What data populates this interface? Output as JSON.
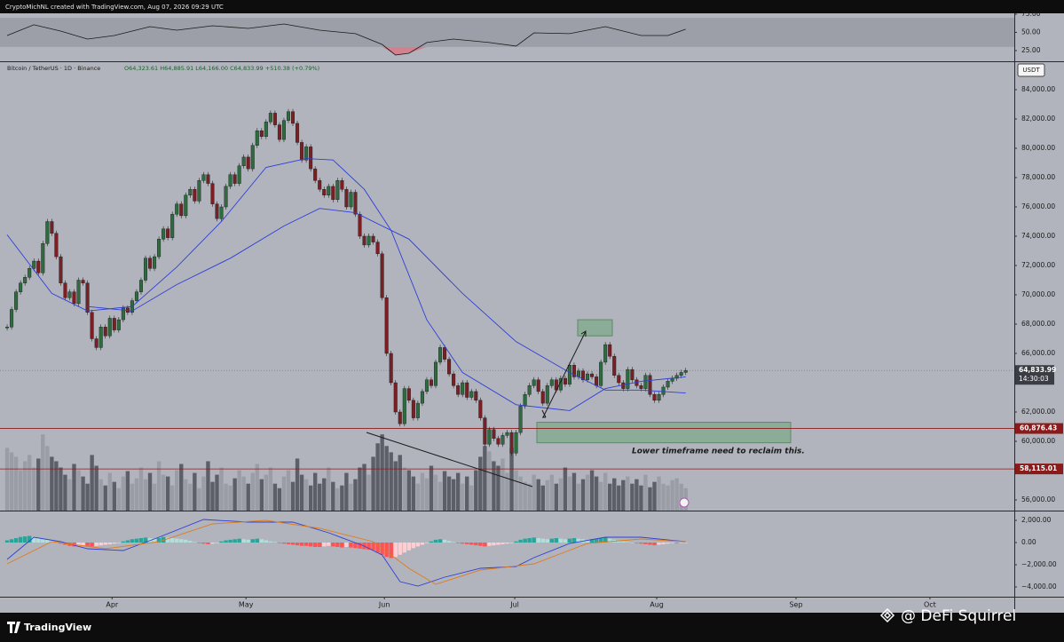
{
  "header": {
    "text": "CryptoMichNL created with TradingView.com, Aug 07, 2026 09:29 UTC"
  },
  "legend": {
    "symbol": "Bitcoin / TetherUS · 1D · Binance",
    "ohlc": "O64,323.61 H64,885.91 L64,166.00 C64,833.99 +510.38 (+0.79%)"
  },
  "currency": "USDT",
  "annotation": "Lower timeframe need to reclaim this.",
  "footer": {
    "brand": "TradingView",
    "watermark": "@ DeFi Squirrel"
  },
  "chart_data": [
    {
      "type": "candlestick",
      "up_color": "#2e6b3e",
      "down_color": "#7a1f24",
      "xlim": [
        -1.6,
        225.6
      ],
      "ylim": [
        55273,
        85879
      ],
      "xticks": [
        {
          "value": 23.5,
          "label": "Apr"
        },
        {
          "value": 53.5,
          "label": "May"
        },
        {
          "value": 84.5,
          "label": "Jun"
        },
        {
          "value": 113.7,
          "label": "Jul"
        },
        {
          "value": 145.5,
          "label": "Aug"
        },
        {
          "value": 176.7,
          "label": "Sep"
        },
        {
          "value": 206.7,
          "label": "Oct"
        }
      ],
      "yticks": [
        {
          "value": 84000,
          "label": "84,000.00"
        },
        {
          "value": 82000,
          "label": "82,000.00"
        },
        {
          "value": 80000,
          "label": "80,000.00"
        },
        {
          "value": 78000,
          "label": "78,000.00"
        },
        {
          "value": 76000,
          "label": "76,000.00"
        },
        {
          "value": 74000,
          "label": "74,000.00"
        },
        {
          "value": 72000,
          "label": "72,000.00"
        },
        {
          "value": 70000,
          "label": "70,000.00"
        },
        {
          "value": 68000,
          "label": "68,000.00"
        },
        {
          "value": 66000,
          "label": "66,000.00"
        },
        {
          "value": 62000,
          "label": "62,000.00"
        },
        {
          "value": 60000,
          "label": "60,000.00"
        },
        {
          "value": 56000,
          "label": "56,000.00"
        }
      ],
      "close": [
        67800,
        69000,
        70200,
        70800,
        71200,
        71800,
        72300,
        71500,
        73500,
        75000,
        74200,
        72600,
        70800,
        69800,
        70200,
        69400,
        71000,
        70800,
        68800,
        67000,
        66400,
        67800,
        67200,
        68400,
        67600,
        68300,
        69100,
        68800,
        69600,
        70200,
        71000,
        72500,
        71800,
        72600,
        73800,
        74500,
        73900,
        75500,
        76200,
        75400,
        76800,
        77200,
        76400,
        77800,
        78200,
        77600,
        76200,
        75200,
        76000,
        77400,
        78200,
        77600,
        78800,
        79400,
        78600,
        80200,
        81200,
        80800,
        81800,
        82400,
        81600,
        80600,
        81900,
        82500,
        81700,
        80400,
        79200,
        80100,
        78600,
        77800,
        77200,
        76800,
        77400,
        76500,
        77800,
        77200,
        76000,
        77000,
        75500,
        74000,
        73400,
        74000,
        73600,
        72800,
        69800,
        66000,
        64000,
        62000,
        61200,
        63600,
        62800,
        61600,
        62600,
        63400,
        64200,
        63800,
        65400,
        66400,
        65600,
        64600,
        63800,
        63200,
        64000,
        63000,
        63400,
        62800,
        61600,
        59800,
        60800,
        60200,
        59800,
        60400,
        60600,
        59200,
        60600,
        62400,
        63200,
        63800,
        64200,
        63400,
        62600,
        63800,
        64200,
        63500,
        64300,
        63900,
        65200,
        64400,
        64800,
        64200,
        64600,
        64400,
        63800,
        65400,
        66600,
        65800,
        64500,
        64000,
        63600,
        64900,
        64200,
        63800,
        63600,
        64500,
        63200,
        62800,
        63200,
        63700,
        64100,
        64300,
        64500,
        64700,
        64833.99
      ],
      "volume": {
        "ylim": [
          0,
          500
        ],
        "up_color": "#9a9da6",
        "down_color": "#5c5f68",
        "values": [
          70,
          65,
          60,
          45,
          55,
          62,
          48,
          58,
          85,
          72,
          60,
          55,
          48,
          40,
          35,
          52,
          45,
          38,
          30,
          62,
          50,
          35,
          28,
          42,
          32,
          25,
          38,
          44,
          30,
          36,
          48,
          35,
          42,
          30,
          55,
          40,
          38,
          28,
          45,
          52,
          35,
          30,
          42,
          25,
          38,
          55,
          32,
          40,
          48,
          30,
          28,
          36,
          45,
          38,
          30,
          42,
          52,
          35,
          40,
          48,
          30,
          25,
          38,
          45,
          32,
          58,
          40,
          35,
          28,
          42,
          30,
          36,
          48,
          32,
          25,
          28,
          42,
          30,
          35,
          48,
          52,
          40,
          60,
          75,
          85,
          72,
          65,
          55,
          62,
          48,
          45,
          38,
          30,
          42,
          36,
          50,
          40,
          32,
          44,
          38,
          35,
          42,
          30,
          38,
          28,
          45,
          60,
          72,
          66,
          55,
          50,
          58,
          42,
          70,
          45,
          38,
          32,
          30,
          40,
          35,
          28,
          34,
          40,
          30,
          36,
          48,
          38,
          42,
          30,
          35,
          40,
          45,
          38,
          32,
          42,
          30,
          36,
          28,
          34,
          38,
          30,
          35,
          28,
          40,
          26,
          32,
          38,
          30,
          28,
          34,
          36,
          30,
          25
        ]
      },
      "moving_averages": [
        {
          "color": "#2f3fd6",
          "x": [
            0,
            10,
            18,
            28,
            38,
            48,
            58,
            67,
            73,
            80,
            86,
            94,
            102,
            114,
            126,
            134,
            142,
            152
          ],
          "values": [
            74100,
            70100,
            68900,
            69200,
            71900,
            75000,
            78700,
            79300,
            79200,
            77200,
            74400,
            68300,
            64700,
            62500,
            62100,
            63600,
            64100,
            64400
          ]
        },
        {
          "color": "#2f3fd6",
          "x": [
            18,
            28,
            38,
            50,
            62,
            70,
            78,
            90,
            102,
            114,
            126,
            134,
            142,
            152
          ],
          "values": [
            69200,
            68900,
            70700,
            72500,
            74700,
            75900,
            75600,
            73800,
            70100,
            66800,
            64700,
            63500,
            63500,
            63300
          ]
        }
      ],
      "zones": [
        {
          "ylim": [
            67200,
            68300
          ],
          "color": "#7fa989"
        },
        {
          "ylim": [
            59900,
            61300
          ],
          "color": "#7fa989"
        }
      ],
      "levels": [
        {
          "value": 60876.43,
          "label": "60,876.43",
          "color": "#8b1a1a"
        },
        {
          "value": 58115.01,
          "label": "58,115.01",
          "color": "#8b1a1a"
        }
      ],
      "last_price": {
        "value": 64833.99,
        "label": "64,833.99",
        "countdown": "14:30:03"
      }
    },
    {
      "type": "line",
      "ylim": [
        11.5,
        76.2
      ],
      "yticks": [
        {
          "value": 75,
          "label": "75.00"
        },
        {
          "value": 50,
          "label": "50.00"
        },
        {
          "value": 25,
          "label": "25.00"
        }
      ],
      "band": [
        30,
        70
      ],
      "color": "#1a1a1a",
      "x": [
        0,
        6,
        12,
        18,
        24,
        32,
        38,
        46,
        54,
        62,
        70,
        78,
        84,
        87,
        90,
        94,
        100,
        108,
        114,
        118,
        126,
        134,
        142,
        148,
        152
      ],
      "values": [
        45.7,
        60.4,
        51.8,
        40.8,
        45.7,
        57.9,
        53,
        59.1,
        55.5,
        61.6,
        53,
        48.2,
        33.5,
        18.9,
        21.3,
        36,
        40.8,
        36,
        31.1,
        49.4,
        48.2,
        57.9,
        45.7,
        45.7,
        54.3
      ]
    },
    {
      "type": "macd",
      "ylim": [
        -4880,
        2880
      ],
      "yticks": [
        {
          "value": 2000,
          "label": "2,000.00"
        },
        {
          "value": 0,
          "label": "0.00"
        },
        {
          "value": -2000,
          "label": "−2,000.00"
        },
        {
          "value": -4000,
          "label": "−4,000.00"
        }
      ],
      "histogram": [
        200,
        300,
        400,
        500,
        550,
        600,
        500,
        400,
        300,
        250,
        150,
        50,
        -100,
        -200,
        -300,
        -350,
        -300,
        -250,
        -300,
        -350,
        -300,
        -250,
        -200,
        -150,
        -100,
        -50,
        100,
        200,
        300,
        350,
        400,
        450,
        400,
        350,
        400,
        500,
        450,
        400,
        350,
        300,
        250,
        150,
        50,
        -50,
        -100,
        -150,
        -100,
        -50,
        100,
        200,
        250,
        300,
        350,
        300,
        250,
        300,
        350,
        300,
        200,
        100,
        50,
        -50,
        -100,
        -150,
        -200,
        -250,
        -300,
        -300,
        -350,
        -400,
        -400,
        -350,
        -300,
        -350,
        -400,
        -450,
        -400,
        -450,
        -500,
        -550,
        -600,
        -650,
        -700,
        -900,
        -1100,
        -1300,
        -1400,
        -1300,
        -1100,
        -900,
        -700,
        -500,
        -350,
        -200,
        -50,
        100,
        250,
        300,
        250,
        150,
        50,
        -50,
        -100,
        -150,
        -200,
        -250,
        -300,
        -350,
        -300,
        -250,
        -200,
        -150,
        -100,
        -50,
        100,
        250,
        350,
        400,
        450,
        400,
        350,
        300,
        350,
        400,
        350,
        300,
        350,
        400,
        350,
        300,
        250,
        300,
        350,
        400,
        450,
        350,
        250,
        150,
        100,
        50,
        0,
        -50,
        -100,
        -150,
        -200,
        -250,
        -200,
        -150,
        -100,
        -50,
        -50,
        -30,
        -20
      ],
      "series": [
        {
          "color": "#2f3fd6",
          "x": [
            0,
            6,
            12,
            18,
            26,
            34,
            44,
            54,
            64,
            72,
            80,
            84,
            88,
            92,
            98,
            106,
            114,
            118,
            126,
            134,
            142,
            152
          ],
          "values": [
            -1520,
            480,
            80,
            -560,
            -720,
            480,
            2080,
            1840,
            1840,
            880,
            -320,
            -1120,
            -3520,
            -3920,
            -3120,
            -2320,
            -2160,
            -1360,
            -80,
            480,
            480,
            80
          ]
        },
        {
          "color": "#e07b1a",
          "x": [
            0,
            10,
            22,
            34,
            46,
            58,
            70,
            82,
            90,
            96,
            106,
            118,
            130,
            142,
            152
          ],
          "values": [
            -1920,
            80,
            -560,
            80,
            1680,
            2000,
            1280,
            80,
            -2320,
            -3760,
            -2480,
            -1920,
            -80,
            320,
            80
          ]
        }
      ]
    }
  ]
}
